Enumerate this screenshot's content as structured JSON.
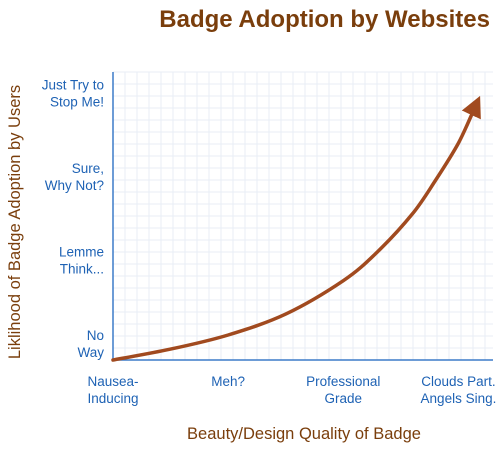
{
  "chart_data": {
    "type": "line",
    "title": "Badge Adoption by Websites",
    "xlabel": "Beauty/Design Quality of Badge",
    "ylabel": "Liklihood of Badge Adoption by Users",
    "x_ticks": [
      [
        "Nausea-",
        "Inducing"
      ],
      [
        "Meh?"
      ],
      [
        "Professional",
        "Grade"
      ],
      [
        "Clouds Part.",
        "Angels Sing."
      ]
    ],
    "y_ticks": [
      [
        "No",
        "Way"
      ],
      [
        "Lemme",
        "Think..."
      ],
      [
        "Sure,",
        "Why Not?"
      ],
      [
        "Just Try to",
        "Stop Me!"
      ]
    ],
    "xlim": [
      0,
      3.3
    ],
    "ylim": [
      0,
      3.45
    ],
    "grid": true,
    "series": [
      {
        "x": [
          0,
          0.5,
          1,
          1.5,
          2,
          2.3,
          2.6,
          2.8,
          3,
          3.15
        ],
        "y": [
          0,
          0.13,
          0.3,
          0.55,
          0.95,
          1.3,
          1.75,
          2.15,
          2.6,
          3.05
        ],
        "color": "#a14a1f",
        "arrow": true
      }
    ]
  }
}
